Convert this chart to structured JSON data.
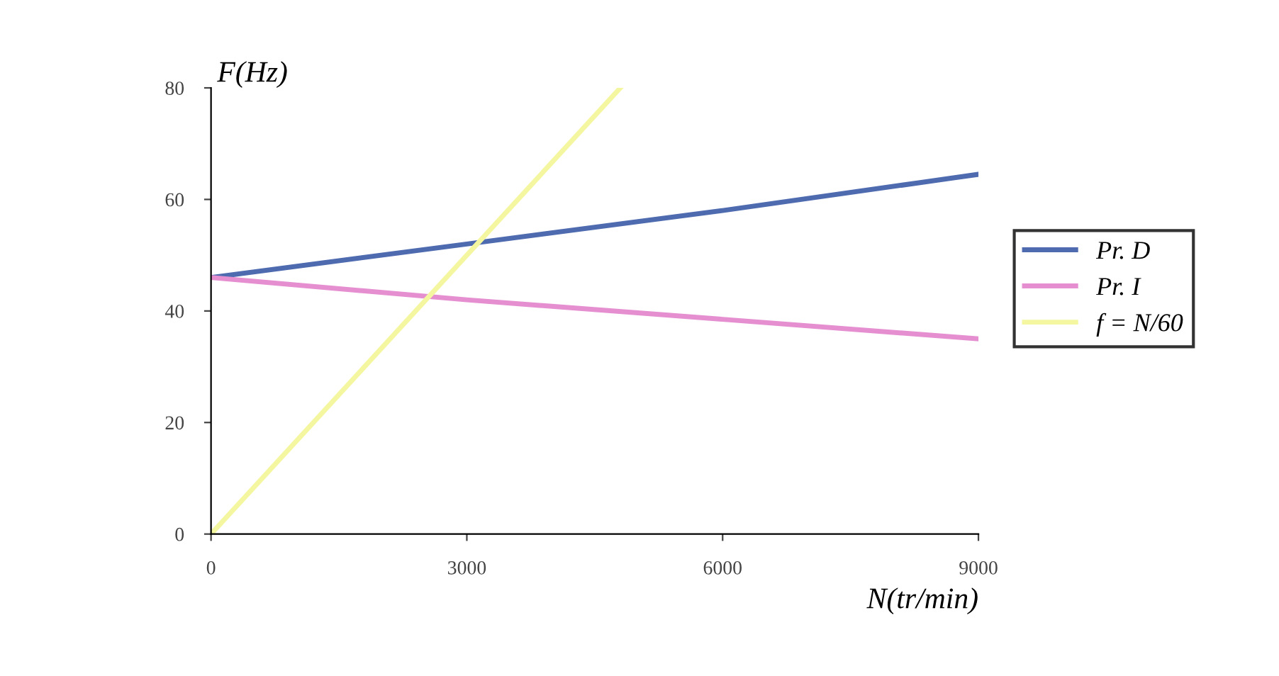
{
  "chart_data": {
    "type": "line",
    "xlabel": "N(tr/min)",
    "ylabel": "F(Hz)",
    "x": [
      0,
      3000,
      6000,
      9000
    ],
    "series": [
      {
        "name": "Pr. D",
        "color": "#4f6bb0",
        "values": [
          46,
          52,
          58,
          64.5
        ]
      },
      {
        "name": "Pr. I",
        "color": "#e58fd0",
        "values": [
          46,
          42,
          38.5,
          35
        ]
      },
      {
        "name": "f = N/60",
        "color": "#f4f7a0",
        "x": [
          0,
          4800
        ],
        "values": [
          0,
          80
        ]
      }
    ],
    "xlim": [
      0,
      9000
    ],
    "xticks": [
      0,
      3000,
      6000,
      9000
    ],
    "ylim": [
      0,
      80
    ],
    "yticks": [
      0,
      20,
      40,
      60,
      80
    ],
    "grid": false,
    "legend": "right",
    "marker": "none",
    "line_style": "solid"
  }
}
